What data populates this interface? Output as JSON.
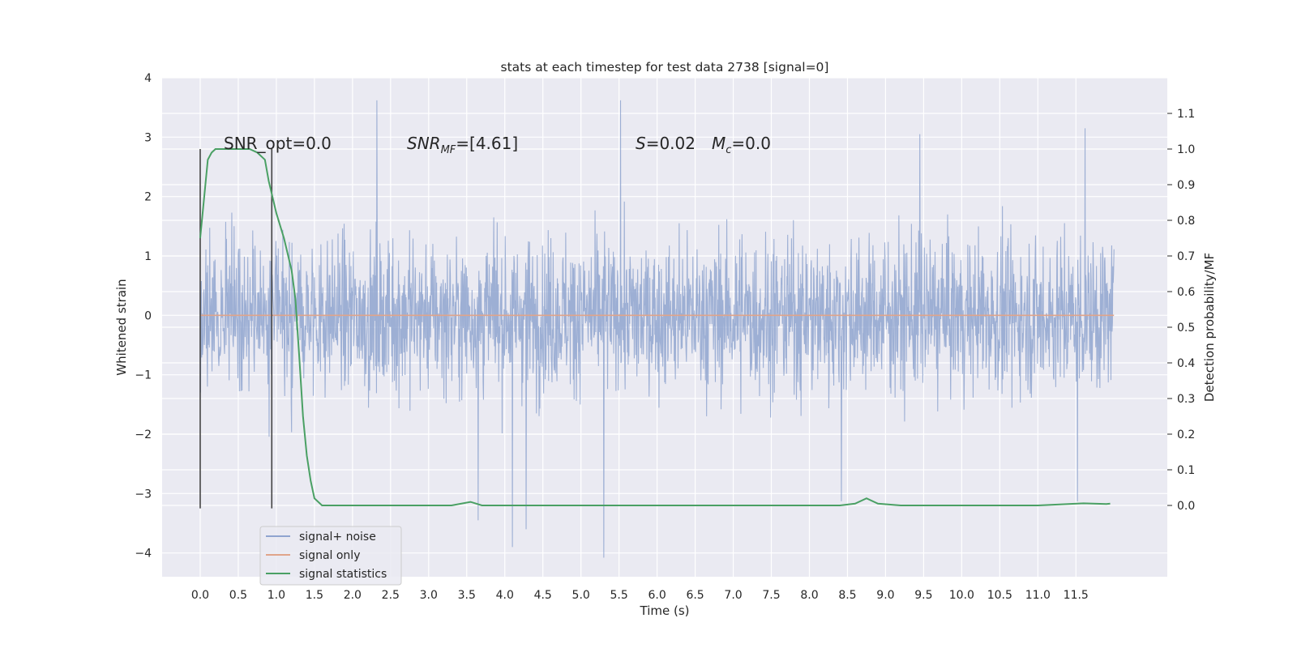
{
  "chart_data": {
    "type": "line",
    "title": "stats at each timestep for test data 2738 [signal=0]",
    "xlabel": "Time (s)",
    "ylabel_left": "Whitened strain",
    "ylabel_right": "Detection probability/MF",
    "xlim": [
      -0.5,
      12.7
    ],
    "ylim_left": [
      -4.4,
      4.0
    ],
    "ylim_right": [
      -0.2,
      1.2
    ],
    "x_ticks": [
      "0.0",
      "0.5",
      "1.0",
      "1.5",
      "2.0",
      "2.5",
      "3.0",
      "3.5",
      "4.0",
      "4.5",
      "5.0",
      "5.5",
      "6.0",
      "6.5",
      "7.0",
      "7.5",
      "8.0",
      "8.5",
      "9.0",
      "9.5",
      "10.0",
      "10.5",
      "11.0",
      "11.5"
    ],
    "y_ticks_left": [
      "4",
      "3",
      "2",
      "1",
      "0",
      "−1",
      "−2",
      "−3",
      "−4"
    ],
    "y_ticks_right": [
      "1.1",
      "1.0",
      "0.9",
      "0.8",
      "0.7",
      "0.6",
      "0.5",
      "0.4",
      "0.3",
      "0.2",
      "0.1",
      "0.0"
    ],
    "grid": true,
    "annotations": {
      "snr_opt": "SNR_opt=0.0",
      "snr_mf_main": "SNR",
      "snr_mf_sub": "MF",
      "snr_mf_value": "=[4.61]",
      "s_label": "S",
      "s_value": "=0.02",
      "mc_main": "M",
      "mc_sub": "c",
      "mc_value": "=0.0"
    },
    "vlines": [
      0.0,
      0.94
    ],
    "series": [
      {
        "name": "signal+ noise",
        "color": "#8fa4cf",
        "axis": "left",
        "x_range": [
          0.0,
          12.0
        ],
        "description_values": {
          "typical_band": [
            -1.6,
            1.6
          ],
          "max": 3.62,
          "min": -4.08
        },
        "peaks": [
          [
            2.32,
            3.62
          ],
          [
            5.52,
            3.62
          ],
          [
            11.62,
            3.15
          ],
          [
            9.45,
            3.05
          ],
          [
            3.65,
            -3.45
          ],
          [
            4.1,
            -3.9
          ],
          [
            4.28,
            -3.6
          ],
          [
            5.3,
            -4.08
          ],
          [
            11.52,
            -3.13
          ],
          [
            8.42,
            -3.13
          ]
        ]
      },
      {
        "name": "signal only",
        "color": "#e0a48a",
        "axis": "left",
        "x": [
          0.0,
          12.0
        ],
        "y": [
          0.0,
          0.0
        ]
      },
      {
        "name": "signal statistics",
        "color": "#4aa064",
        "axis": "right",
        "x": [
          0.0,
          0.05,
          0.1,
          0.15,
          0.2,
          0.3,
          0.5,
          0.65,
          0.75,
          0.85,
          0.9,
          1.0,
          1.1,
          1.2,
          1.25,
          1.3,
          1.35,
          1.4,
          1.45,
          1.5,
          1.6,
          1.8,
          2.5,
          3.3,
          3.55,
          3.7,
          4.0,
          4.5,
          6.0,
          7.5,
          8.0,
          8.4,
          8.6,
          8.75,
          8.9,
          9.2,
          10.0,
          11.0,
          11.6,
          11.9,
          11.95
        ],
        "y": [
          0.75,
          0.86,
          0.97,
          0.99,
          1.0,
          1.0,
          1.0,
          1.0,
          0.99,
          0.97,
          0.91,
          0.82,
          0.75,
          0.66,
          0.58,
          0.42,
          0.25,
          0.14,
          0.07,
          0.02,
          0.0,
          0.0,
          0.0,
          0.0,
          0.01,
          0.0,
          0.0,
          0.0,
          0.0,
          0.0,
          0.0,
          0.0,
          0.005,
          0.02,
          0.005,
          0.0,
          0.0,
          0.0,
          0.006,
          0.004,
          0.005
        ]
      }
    ],
    "legend": {
      "placement": "lower-left",
      "entries": [
        "signal+ noise",
        "signal only",
        "signal statistics"
      ]
    }
  }
}
